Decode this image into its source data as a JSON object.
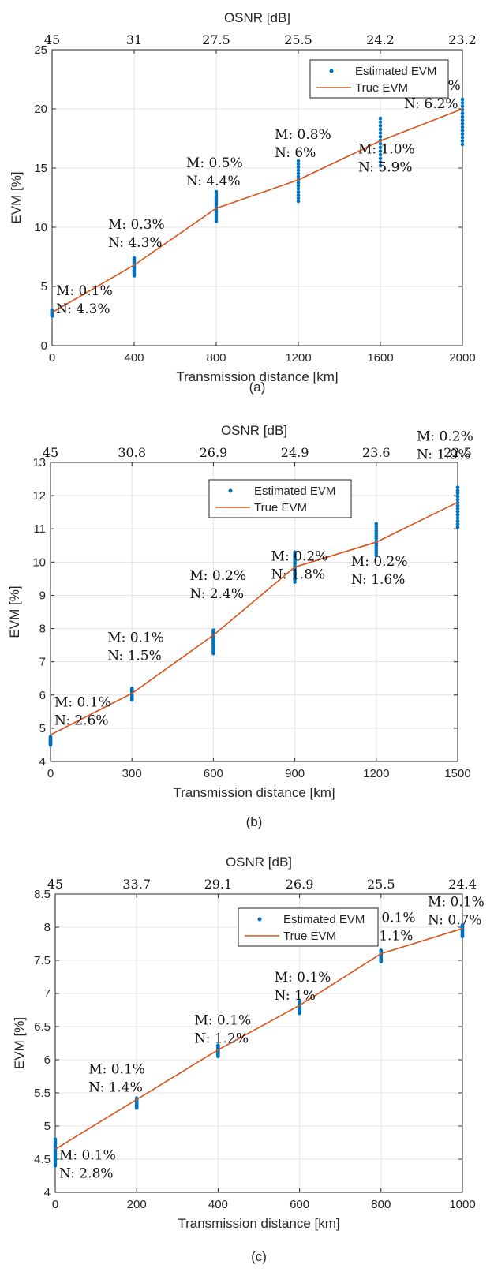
{
  "chart_data": [
    {
      "type": "scatter",
      "caption": "(a)",
      "xlabel": "Transmission distance [km]",
      "x2label": "OSNR [dB]",
      "ylabel": "EVM [%]",
      "xlim": [
        0,
        2000
      ],
      "ylim": [
        0,
        25
      ],
      "xticks": [
        0,
        400,
        800,
        1200,
        1600,
        2000
      ],
      "xtick_labels": [
        "0",
        "400",
        "800",
        "1200",
        "1600",
        "2000"
      ],
      "yticks": [
        0,
        5,
        10,
        15,
        20,
        25
      ],
      "ytick_labels": [
        "0",
        "5",
        "10",
        "15",
        "20",
        "25"
      ],
      "x2tick_labels": [
        "45",
        "31",
        "27.5",
        "25.5",
        "24.2",
        "23.2"
      ],
      "grid": true,
      "legend": {
        "position": "top-right",
        "entries": [
          "Estimated EVM",
          "True EVM"
        ]
      },
      "series": [
        {
          "name": "Estimated EVM",
          "kind": "scatter",
          "color": "#0072BD",
          "x": [
            0,
            400,
            800,
            1200,
            1600,
            2000
          ],
          "y_min": [
            2.5,
            5.9,
            10.5,
            12.2,
            15.2,
            17.0
          ],
          "y_max": [
            3.0,
            7.4,
            13.0,
            15.6,
            19.2,
            20.8
          ]
        },
        {
          "name": "True EVM",
          "kind": "line",
          "color": "#D95319",
          "x": [
            0,
            400,
            800,
            1200,
            1600,
            2000
          ],
          "y": [
            2.8,
            6.8,
            11.6,
            14.0,
            17.3,
            20.0
          ]
        }
      ],
      "annotations": [
        {
          "x": 0,
          "y": 2.8,
          "lines": [
            "M: 0.1%",
            "N: 4.3%"
          ]
        },
        {
          "x": 400,
          "y": 6.8,
          "lines": [
            "M: 0.3%",
            "N: 4.3%"
          ]
        },
        {
          "x": 800,
          "y": 11.6,
          "lines": [
            "M: 0.5%",
            "N: 4.4%"
          ]
        },
        {
          "x": 1200,
          "y": 14.0,
          "lines": [
            "M: 0.8%",
            "N: 6%"
          ]
        },
        {
          "x": 1600,
          "y": 17.3,
          "lines": [
            "M: 1.0%",
            "N: 5.9%"
          ]
        },
        {
          "x": 2000,
          "y": 20.0,
          "lines": [
            "M: 1.2%",
            "N: 6.2%"
          ]
        }
      ]
    },
    {
      "type": "scatter",
      "caption": "(b)",
      "xlabel": "Transmission distance [km]",
      "x2label": "OSNR [dB]",
      "ylabel": "EVM [%]",
      "xlim": [
        0,
        1500
      ],
      "ylim": [
        4,
        13
      ],
      "xticks": [
        0,
        300,
        600,
        900,
        1200,
        1500
      ],
      "xtick_labels": [
        "0",
        "300",
        "600",
        "900",
        "1200",
        "1500"
      ],
      "yticks": [
        4,
        5,
        6,
        7,
        8,
        9,
        10,
        11,
        12,
        13
      ],
      "ytick_labels": [
        "4",
        "5",
        "6",
        "7",
        "8",
        "9",
        "10",
        "11",
        "12",
        "13"
      ],
      "x2tick_labels": [
        "45",
        "30.8",
        "26.9",
        "24.9",
        "23.6",
        "22.5"
      ],
      "grid": true,
      "legend": {
        "position": "top-center",
        "entries": [
          "Estimated EVM",
          "True EVM"
        ]
      },
      "series": [
        {
          "name": "Estimated EVM",
          "kind": "scatter",
          "color": "#0072BD",
          "x": [
            0,
            300,
            600,
            900,
            1200,
            1500
          ],
          "y_min": [
            4.5,
            5.85,
            7.25,
            9.4,
            10.2,
            11.05
          ],
          "y_max": [
            4.75,
            6.2,
            7.95,
            10.3,
            11.15,
            12.25
          ]
        },
        {
          "name": "True EVM",
          "kind": "line",
          "color": "#D95319",
          "x": [
            0,
            300,
            600,
            900,
            1200,
            1500
          ],
          "y": [
            4.8,
            6.05,
            7.8,
            9.85,
            10.6,
            11.8
          ]
        }
      ],
      "annotations": [
        {
          "x": 0,
          "y": 4.8,
          "lines": [
            "M: 0.1%",
            "N: 2.6%"
          ]
        },
        {
          "x": 300,
          "y": 6.05,
          "lines": [
            "M: 0.1%",
            "N: 1.5%"
          ]
        },
        {
          "x": 600,
          "y": 7.8,
          "lines": [
            "M: 0.2%",
            "N: 2.4%"
          ]
        },
        {
          "x": 900,
          "y": 9.85,
          "lines": [
            "M: 0.2%",
            "N: 1.8%"
          ]
        },
        {
          "x": 1200,
          "y": 10.6,
          "lines": [
            "M: 0.2%",
            "N: 1.6%"
          ]
        },
        {
          "x": 1500,
          "y": 11.8,
          "lines": [
            "M: 0.2%",
            "N: 1.9%"
          ]
        }
      ]
    },
    {
      "type": "scatter",
      "caption": "(c)",
      "xlabel": "Transmission distance [km]",
      "x2label": "OSNR [dB]",
      "ylabel": "EVM [%]",
      "xlim": [
        0,
        1000
      ],
      "ylim": [
        4,
        8.5
      ],
      "xticks": [
        0,
        200,
        400,
        600,
        800,
        1000
      ],
      "xtick_labels": [
        "0",
        "200",
        "400",
        "600",
        "800",
        "1000"
      ],
      "yticks": [
        4,
        4.5,
        5,
        5.5,
        6,
        6.5,
        7,
        7.5,
        8,
        8.5
      ],
      "ytick_labels": [
        "4",
        "4.5",
        "5",
        "5.5",
        "6",
        "6.5",
        "7",
        "7.5",
        "8",
        "8.5"
      ],
      "x2tick_labels": [
        "45",
        "33.7",
        "29.1",
        "26.9",
        "25.5",
        "24.4"
      ],
      "grid": true,
      "legend": {
        "position": "top-center",
        "entries": [
          "Estimated EVM",
          "True EVM"
        ]
      },
      "series": [
        {
          "name": "Estimated EVM",
          "kind": "scatter",
          "color": "#0072BD",
          "x": [
            0,
            200,
            400,
            600,
            800,
            1000
          ],
          "y_min": [
            4.4,
            5.27,
            6.05,
            6.7,
            7.48,
            7.86
          ],
          "y_max": [
            4.8,
            5.42,
            6.22,
            6.88,
            7.65,
            8.03
          ]
        },
        {
          "name": "True EVM",
          "kind": "line",
          "color": "#D95319",
          "x": [
            0,
            200,
            400,
            600,
            800,
            1000
          ],
          "y": [
            4.65,
            5.4,
            6.15,
            6.82,
            7.6,
            7.98
          ]
        }
      ],
      "annotations": [
        {
          "x": 0,
          "y": 4.65,
          "lines": [
            "M: 0.1%",
            "N: 2.8%"
          ]
        },
        {
          "x": 200,
          "y": 5.4,
          "lines": [
            "M: 0.1%",
            "N: 1.4%"
          ]
        },
        {
          "x": 400,
          "y": 6.15,
          "lines": [
            "M: 0.1%",
            "N: 1.2%"
          ]
        },
        {
          "x": 600,
          "y": 6.82,
          "lines": [
            "M: 0.1%",
            "N: 1%"
          ]
        },
        {
          "x": 800,
          "y": 7.6,
          "lines": [
            "M: 0.1%",
            "N: 1.1%"
          ]
        },
        {
          "x": 1000,
          "y": 7.98,
          "lines": [
            "M: 0.1%",
            "N: 0.7%"
          ]
        }
      ]
    }
  ]
}
